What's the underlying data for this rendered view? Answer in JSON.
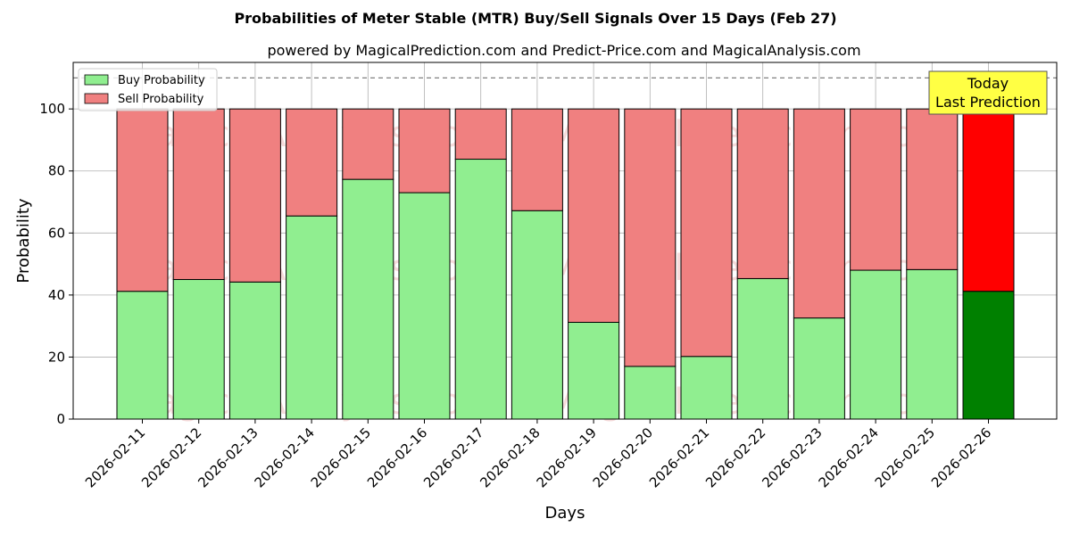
{
  "chart_data": {
    "type": "bar",
    "stacked": true,
    "title": "Probabilities of Meter Stable (MTR) Buy/Sell Signals Over 15 Days (Feb 27)",
    "subtitle": "powered by MagicalPrediction.com and Predict-Price.com and MagicalAnalysis.com",
    "xlabel": "Days",
    "ylabel": "Probability",
    "ylim": [
      0,
      115
    ],
    "yticks": [
      0,
      20,
      40,
      60,
      80,
      100
    ],
    "grid": true,
    "legend_position": "top-left",
    "reference_line": 110,
    "categories": [
      "2026-02-11",
      "2026-02-12",
      "2026-02-13",
      "2026-02-14",
      "2026-02-15",
      "2026-02-16",
      "2026-02-17",
      "2026-02-18",
      "2026-02-19",
      "2026-02-20",
      "2026-02-21",
      "2026-02-22",
      "2026-02-23",
      "2026-02-24",
      "2026-02-25",
      "2026-02-26"
    ],
    "series": [
      {
        "name": "Buy Probability",
        "color": "#90ee90",
        "highlight_color": "#008000",
        "values": [
          41.2,
          45.0,
          44.2,
          65.5,
          77.3,
          73.0,
          83.8,
          67.2,
          31.2,
          17.0,
          20.2,
          45.3,
          32.6,
          48.0,
          48.2,
          41.2
        ]
      },
      {
        "name": "Sell Probability",
        "color": "#f08080",
        "highlight_color": "#ff0000",
        "values": [
          58.8,
          55.0,
          55.8,
          34.5,
          22.7,
          27.0,
          16.2,
          32.8,
          68.8,
          83.0,
          79.8,
          54.7,
          67.4,
          52.0,
          51.8,
          58.8
        ]
      }
    ],
    "highlight_index": 15,
    "annotation": {
      "line1": "Today",
      "line2": "Last Prediction",
      "color": "#ffff44"
    },
    "watermarks": [
      "MagicalAnalysis.com",
      "MagicalPrediction.com"
    ]
  }
}
